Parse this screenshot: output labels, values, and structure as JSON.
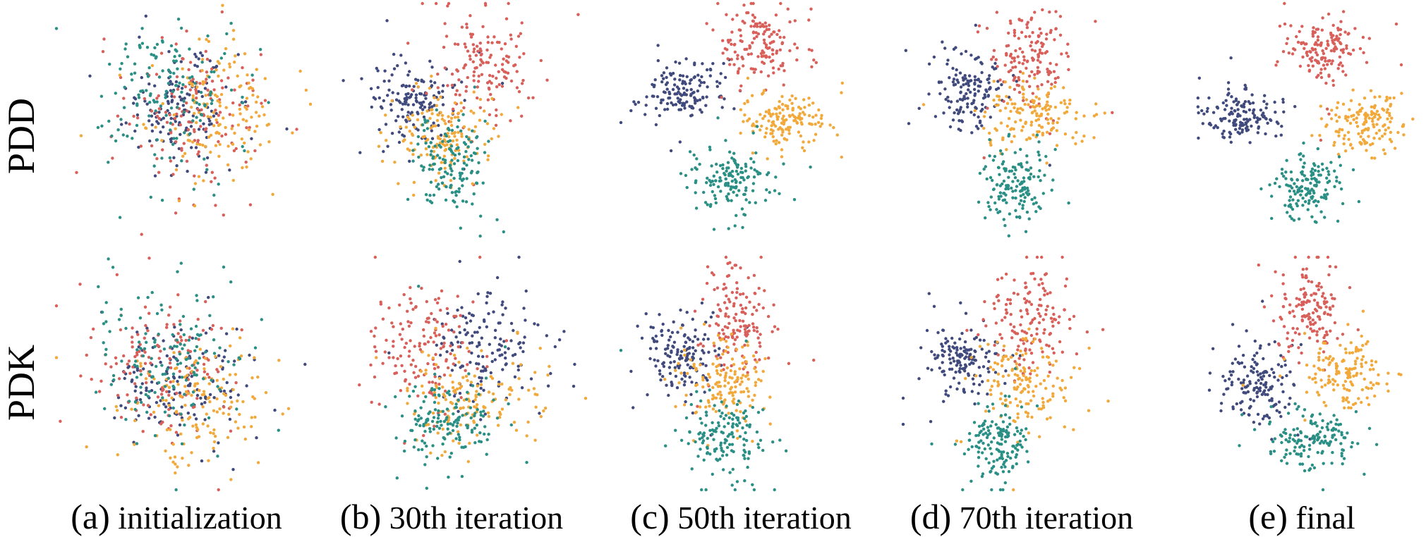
{
  "row_labels": [
    "PDD",
    "PDK"
  ],
  "captions": [
    {
      "tag": "(a)",
      "text": "initialization"
    },
    {
      "tag": "(b)",
      "text": "30th iteration"
    },
    {
      "tag": "(c)",
      "text": "50th iteration"
    },
    {
      "tag": "(d)",
      "text": "70th iteration"
    },
    {
      "tag": "(e)",
      "text": "final"
    }
  ],
  "colors": {
    "navy": "#414a7c",
    "red": "#d9605a",
    "orange": "#f2a93b",
    "teal": "#2a8f85"
  },
  "chart_data": {
    "type": "scatter",
    "grid": false,
    "axes_visible": false,
    "panels_per_row": 5,
    "rows": [
      "PDD",
      "PDK"
    ],
    "columns": [
      "(a) initialization",
      "(b) 30th iteration",
      "(c) 50th iteration",
      "(d) 70th iteration",
      "(e) final"
    ],
    "clusters_note": "four point clouds per panel; values are normalized embedding coordinates (x right, y up), approx cluster centers and spreads",
    "series_colors": [
      "#414a7c",
      "#d9605a",
      "#f2a93b",
      "#2a8f85"
    ],
    "panels": [
      {
        "row": 0,
        "col": 0,
        "clusters": [
          {
            "color": "#414a7c",
            "cx": 0.48,
            "cy": 0.55,
            "sx": 0.1,
            "sy": 0.12
          },
          {
            "color": "#d9605a",
            "cx": 0.52,
            "cy": 0.52,
            "sx": 0.13,
            "sy": 0.16
          },
          {
            "color": "#f2a93b",
            "cx": 0.62,
            "cy": 0.55,
            "sx": 0.13,
            "sy": 0.14
          },
          {
            "color": "#2a8f85",
            "cx": 0.42,
            "cy": 0.62,
            "sx": 0.15,
            "sy": 0.16
          }
        ]
      },
      {
        "row": 0,
        "col": 1,
        "clusters": [
          {
            "color": "#414a7c",
            "cx": 0.32,
            "cy": 0.58,
            "sx": 0.09,
            "sy": 0.08
          },
          {
            "color": "#d9605a",
            "cx": 0.6,
            "cy": 0.72,
            "sx": 0.09,
            "sy": 0.12
          },
          {
            "color": "#f2a93b",
            "cx": 0.45,
            "cy": 0.44,
            "sx": 0.1,
            "sy": 0.09
          },
          {
            "color": "#2a8f85",
            "cx": 0.47,
            "cy": 0.3,
            "sx": 0.07,
            "sy": 0.1
          }
        ]
      },
      {
        "row": 0,
        "col": 2,
        "clusters": [
          {
            "color": "#414a7c",
            "cx": 0.25,
            "cy": 0.62,
            "sx": 0.07,
            "sy": 0.07
          },
          {
            "color": "#d9605a",
            "cx": 0.55,
            "cy": 0.82,
            "sx": 0.08,
            "sy": 0.09
          },
          {
            "color": "#f2a93b",
            "cx": 0.64,
            "cy": 0.5,
            "sx": 0.08,
            "sy": 0.06
          },
          {
            "color": "#2a8f85",
            "cx": 0.44,
            "cy": 0.24,
            "sx": 0.08,
            "sy": 0.07
          }
        ]
      },
      {
        "row": 0,
        "col": 3,
        "clusters": [
          {
            "color": "#414a7c",
            "cx": 0.26,
            "cy": 0.62,
            "sx": 0.07,
            "sy": 0.08
          },
          {
            "color": "#d9605a",
            "cx": 0.5,
            "cy": 0.78,
            "sx": 0.07,
            "sy": 0.11
          },
          {
            "color": "#f2a93b",
            "cx": 0.52,
            "cy": 0.52,
            "sx": 0.1,
            "sy": 0.07
          },
          {
            "color": "#2a8f85",
            "cx": 0.44,
            "cy": 0.22,
            "sx": 0.07,
            "sy": 0.08
          }
        ]
      },
      {
        "row": 0,
        "col": 4,
        "clusters": [
          {
            "color": "#414a7c",
            "cx": 0.22,
            "cy": 0.52,
            "sx": 0.07,
            "sy": 0.05
          },
          {
            "color": "#d9605a",
            "cx": 0.55,
            "cy": 0.8,
            "sx": 0.07,
            "sy": 0.07
          },
          {
            "color": "#f2a93b",
            "cx": 0.7,
            "cy": 0.48,
            "sx": 0.08,
            "sy": 0.06
          },
          {
            "color": "#2a8f85",
            "cx": 0.48,
            "cy": 0.22,
            "sx": 0.06,
            "sy": 0.07
          }
        ]
      },
      {
        "row": 1,
        "col": 0,
        "clusters": [
          {
            "color": "#414a7c",
            "cx": 0.48,
            "cy": 0.45,
            "sx": 0.13,
            "sy": 0.13
          },
          {
            "color": "#d9605a",
            "cx": 0.4,
            "cy": 0.5,
            "sx": 0.13,
            "sy": 0.14
          },
          {
            "color": "#f2a93b",
            "cx": 0.55,
            "cy": 0.38,
            "sx": 0.13,
            "sy": 0.13
          },
          {
            "color": "#2a8f85",
            "cx": 0.45,
            "cy": 0.58,
            "sx": 0.15,
            "sy": 0.15
          }
        ]
      },
      {
        "row": 1,
        "col": 1,
        "clusters": [
          {
            "color": "#414a7c",
            "cx": 0.6,
            "cy": 0.62,
            "sx": 0.12,
            "sy": 0.12
          },
          {
            "color": "#d9605a",
            "cx": 0.35,
            "cy": 0.6,
            "sx": 0.09,
            "sy": 0.13
          },
          {
            "color": "#f2a93b",
            "cx": 0.55,
            "cy": 0.38,
            "sx": 0.13,
            "sy": 0.09
          },
          {
            "color": "#2a8f85",
            "cx": 0.45,
            "cy": 0.3,
            "sx": 0.1,
            "sy": 0.08
          }
        ]
      },
      {
        "row": 1,
        "col": 2,
        "clusters": [
          {
            "color": "#414a7c",
            "cx": 0.24,
            "cy": 0.58,
            "sx": 0.07,
            "sy": 0.08
          },
          {
            "color": "#d9605a",
            "cx": 0.46,
            "cy": 0.72,
            "sx": 0.07,
            "sy": 0.13
          },
          {
            "color": "#f2a93b",
            "cx": 0.4,
            "cy": 0.46,
            "sx": 0.08,
            "sy": 0.09
          },
          {
            "color": "#2a8f85",
            "cx": 0.4,
            "cy": 0.22,
            "sx": 0.08,
            "sy": 0.08
          }
        ]
      },
      {
        "row": 1,
        "col": 3,
        "clusters": [
          {
            "color": "#414a7c",
            "cx": 0.24,
            "cy": 0.55,
            "sx": 0.07,
            "sy": 0.08
          },
          {
            "color": "#d9605a",
            "cx": 0.5,
            "cy": 0.74,
            "sx": 0.08,
            "sy": 0.11
          },
          {
            "color": "#f2a93b",
            "cx": 0.48,
            "cy": 0.46,
            "sx": 0.08,
            "sy": 0.1
          },
          {
            "color": "#2a8f85",
            "cx": 0.38,
            "cy": 0.2,
            "sx": 0.06,
            "sy": 0.08
          }
        ]
      },
      {
        "row": 1,
        "col": 4,
        "clusters": [
          {
            "color": "#414a7c",
            "cx": 0.28,
            "cy": 0.46,
            "sx": 0.07,
            "sy": 0.08
          },
          {
            "color": "#d9605a",
            "cx": 0.5,
            "cy": 0.78,
            "sx": 0.07,
            "sy": 0.1
          },
          {
            "color": "#f2a93b",
            "cx": 0.63,
            "cy": 0.5,
            "sx": 0.08,
            "sy": 0.07
          },
          {
            "color": "#2a8f85",
            "cx": 0.5,
            "cy": 0.22,
            "sx": 0.09,
            "sy": 0.06
          }
        ]
      }
    ],
    "points_per_cluster": 150
  }
}
